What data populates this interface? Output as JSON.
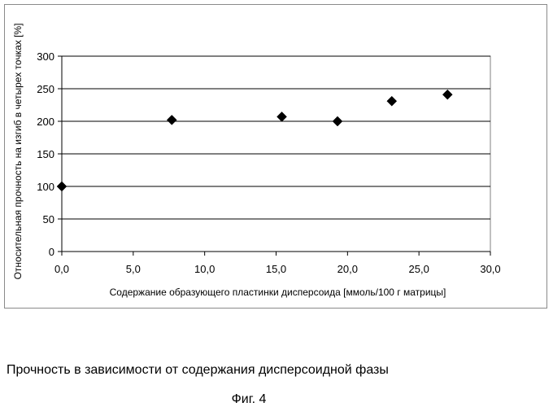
{
  "chart_data": {
    "type": "scatter",
    "title": "",
    "xlabel": "Содержание образующего пластинки дисперсоида [ммоль/100 г матрицы]",
    "ylabel": "Относительная прочность на изгиб в четырех точках [%]",
    "xlim": [
      0,
      30
    ],
    "ylim": [
      0,
      300
    ],
    "x_ticks": [
      0,
      5,
      10,
      15,
      20,
      25,
      30
    ],
    "x_tick_labels": [
      "0,0",
      "5,0",
      "10,0",
      "15,0",
      "20,0",
      "25,0",
      "30,0"
    ],
    "y_ticks": [
      0,
      50,
      100,
      150,
      200,
      250,
      300
    ],
    "y_tick_labels": [
      "0",
      "50",
      "100",
      "150",
      "200",
      "250",
      "300"
    ],
    "grid": "horizontal",
    "marker": "diamond",
    "marker_color": "#000000",
    "points": [
      {
        "x": 0.0,
        "y": 100
      },
      {
        "x": 7.7,
        "y": 202
      },
      {
        "x": 15.4,
        "y": 207
      },
      {
        "x": 19.3,
        "y": 200
      },
      {
        "x": 23.1,
        "y": 231
      },
      {
        "x": 27.0,
        "y": 241
      }
    ]
  },
  "caption": "Прочность в зависимости от содержания дисперсоидной фазы",
  "figure_label": "Фиг. 4"
}
